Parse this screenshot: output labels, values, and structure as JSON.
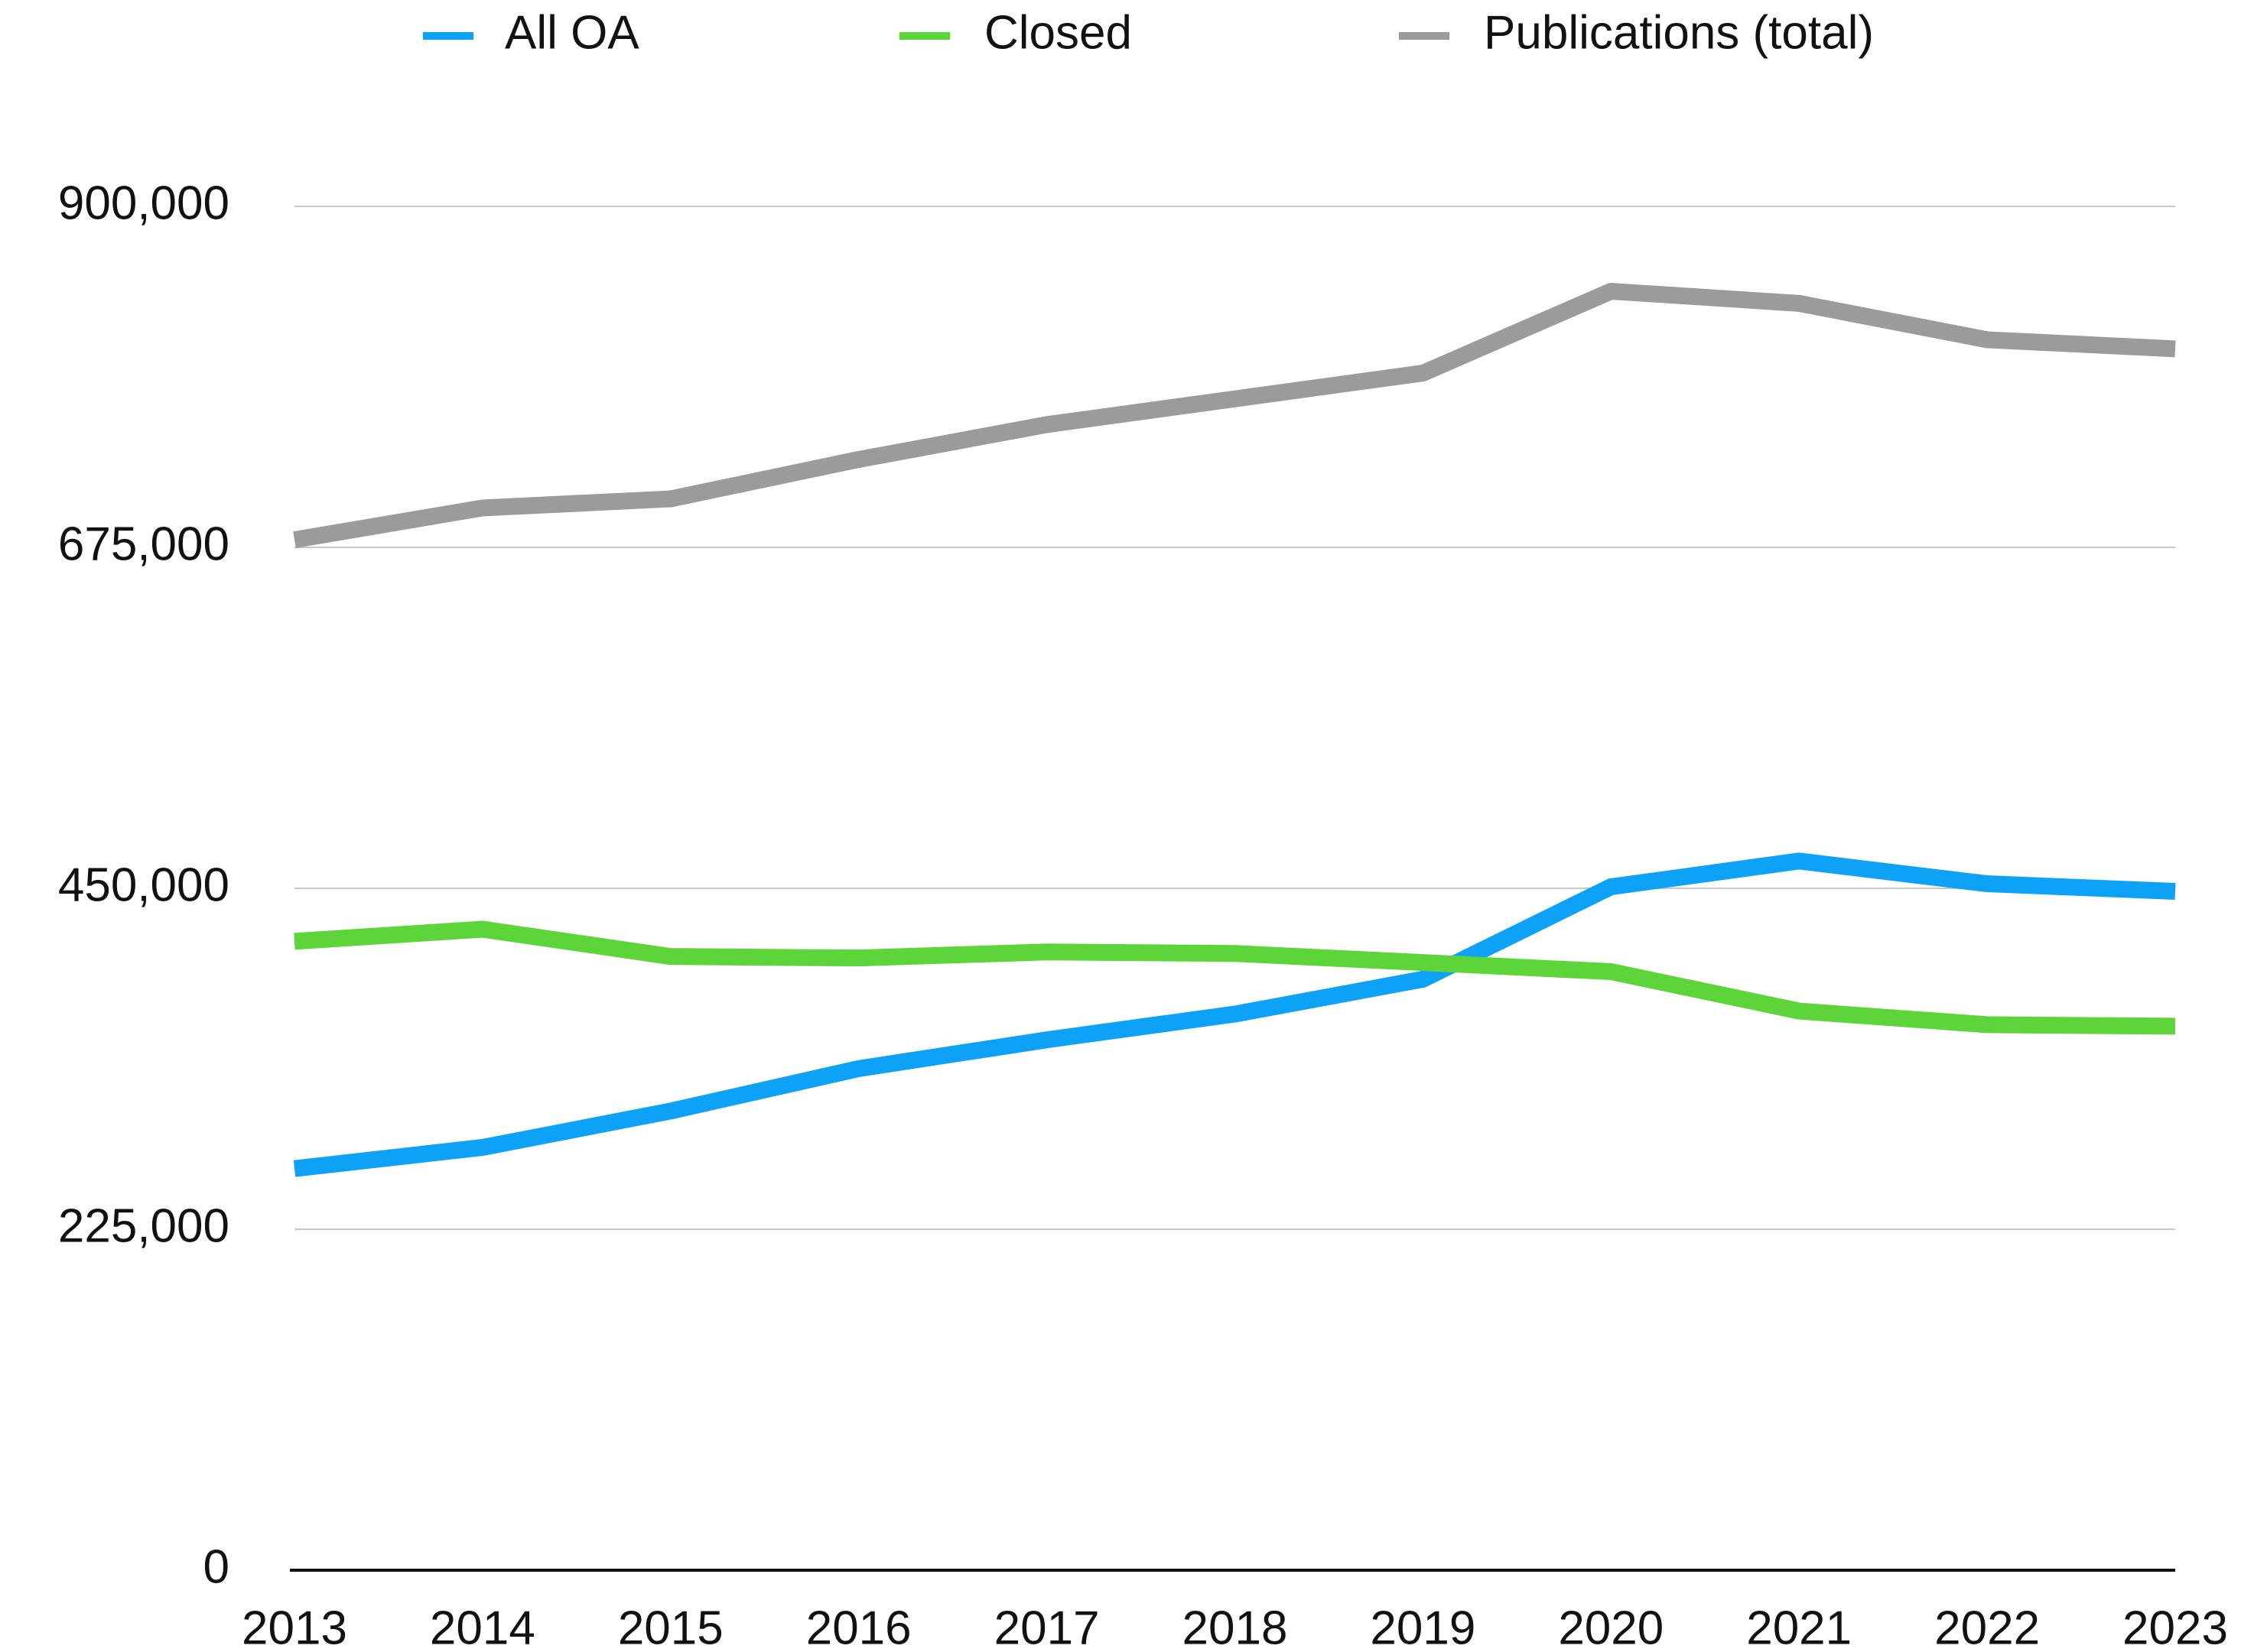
{
  "chart_data": {
    "type": "line",
    "categories": [
      "2013",
      "2014",
      "2015",
      "2016",
      "2017",
      "2018",
      "2019",
      "2020",
      "2021",
      "2022",
      "2023"
    ],
    "series": [
      {
        "name": "All OA",
        "color": "#0ea2f6",
        "values": [
          265000,
          279000,
          303000,
          331000,
          350000,
          367000,
          390000,
          451000,
          468000,
          453000,
          448000
        ]
      },
      {
        "name": "Closed",
        "color": "#5ed43b",
        "values": [
          415000,
          423000,
          405000,
          404000,
          408000,
          407000,
          401000,
          395000,
          369000,
          360000,
          359000
        ]
      },
      {
        "name": "Publications (total)",
        "color": "#9b9b9b",
        "values": [
          680000,
          701000,
          707000,
          733000,
          756000,
          773000,
          790000,
          844000,
          836000,
          812000,
          806000
        ]
      }
    ],
    "ylim": [
      0,
      900000
    ],
    "yticks": [
      0,
      {
        "value": 225000,
        "label": "225,000"
      },
      {
        "value": 450000,
        "label": "450,000"
      },
      {
        "value": 675000,
        "label": "675,000"
      },
      {
        "value": 900000,
        "label": "900,000"
      }
    ],
    "grid": true,
    "legend": "top"
  }
}
